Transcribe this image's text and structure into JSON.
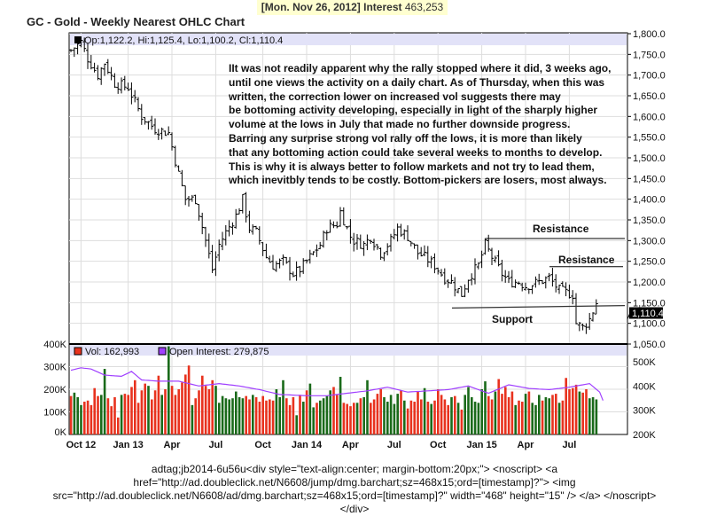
{
  "header": {
    "date": "[Mon. Nov 26, 2012]",
    "interest_label": "Interest",
    "interest_value": "463,253"
  },
  "title": "GC - Gold - Weekly Nearest OHLC Chart",
  "footer_text": "adtag;jb2014-6u56u<div style=\"text-align:center; margin-bottom:20px;\"> <noscript> <a href=\"http://ad.doubleclick.net/N6608/jump/dmg.barchart;sz=468x15;ord=[timestamp]?\"> <img src=\"http://ad.doubleclick.net/N6608/ad/dmg.barchart;sz=468x15;ord=[timestamp]?\" width=\"468\" height=\"15\" /> </a> </noscript> </div>",
  "chart_data": [
    {
      "type": "ohlc",
      "legend": "Op:1,122.2, Hi:1,125.4, Lo:1,100.2, Cl:1,110.4",
      "last_price_label": "1,110.4",
      "ylim": [
        1050,
        1800
      ],
      "yticks": [
        "1,800.0",
        "1,750.0",
        "1,700.0",
        "1,650.0",
        "1,600.0",
        "1,550.0",
        "1,500.0",
        "1,450.0",
        "1,400.0",
        "1,350.0",
        "1,300.0",
        "1,250.0",
        "1,200.0",
        "1,150.0",
        "1,100.0",
        "1,050.0"
      ],
      "ytick_values": [
        1800,
        1750,
        1700,
        1650,
        1600,
        1550,
        1500,
        1450,
        1400,
        1350,
        1300,
        1250,
        1200,
        1150,
        1100,
        1050
      ],
      "close_keypoints_week_price": [
        [
          0,
          1760
        ],
        [
          3,
          1780
        ],
        [
          5,
          1740
        ],
        [
          8,
          1700
        ],
        [
          10,
          1730
        ],
        [
          13,
          1680
        ],
        [
          17,
          1670
        ],
        [
          21,
          1600
        ],
        [
          25,
          1570
        ],
        [
          29,
          1560
        ],
        [
          32,
          1460
        ],
        [
          34,
          1400
        ],
        [
          37,
          1400
        ],
        [
          40,
          1300
        ],
        [
          42,
          1230
        ],
        [
          44,
          1290
        ],
        [
          46,
          1320
        ],
        [
          49,
          1360
        ],
        [
          51,
          1400
        ],
        [
          53,
          1330
        ],
        [
          55,
          1320
        ],
        [
          58,
          1260
        ],
        [
          60,
          1240
        ],
        [
          63,
          1250
        ],
        [
          66,
          1220
        ],
        [
          68,
          1230
        ],
        [
          71,
          1260
        ],
        [
          74,
          1290
        ],
        [
          76,
          1330
        ],
        [
          79,
          1340
        ],
        [
          80,
          1370
        ],
        [
          83,
          1310
        ],
        [
          84,
          1300
        ],
        [
          87,
          1290
        ],
        [
          89,
          1310
        ],
        [
          92,
          1270
        ],
        [
          95,
          1300
        ],
        [
          97,
          1330
        ],
        [
          100,
          1310
        ],
        [
          103,
          1270
        ],
        [
          105,
          1260
        ],
        [
          108,
          1240
        ],
        [
          111,
          1210
        ],
        [
          113,
          1200
        ],
        [
          116,
          1170
        ],
        [
          118,
          1210
        ],
        [
          121,
          1240
        ],
        [
          123,
          1290
        ],
        [
          125,
          1260
        ],
        [
          128,
          1220
        ],
        [
          130,
          1200
        ],
        [
          133,
          1200
        ],
        [
          135,
          1190
        ],
        [
          139,
          1200
        ],
        [
          142,
          1210
        ],
        [
          145,
          1180
        ],
        [
          149,
          1170
        ],
        [
          150,
          1100
        ],
        [
          152,
          1090
        ],
        [
          154,
          1110
        ],
        [
          156,
          1150
        ],
        [
          157,
          1110
        ]
      ],
      "annotations": {
        "commentary": "IIt was not readily apparent why the rally stopped where it did, 3 weeks ago,\n until one views the activity on a daily chart.  As of Thursday, when this was\n written, the correction lower on increased vol suggests there may\n be bottoming activity developing, especially in light of the sharply higher\n volume at the lows in July that made no further downside progress.\n Barring any surprise strong vol rally off the lows, it is more than likely\n that any bottoming action could take several weeks to months to develop.\n This is why it is always better to follow markets and not try to lead them,\n which inevitbly tends to be costly.  Bottom-pickers are losers, most always.",
        "resistance_1": {
          "label": "Resistance",
          "price": 1305
        },
        "resistance_2": {
          "label": "Resistance",
          "price": 1237
        },
        "support": {
          "label": "Support",
          "price": 1143
        }
      }
    },
    {
      "type": "bar+line",
      "legend_volume": "Vol: 162,993",
      "legend_oi": "Open Interest: 279,875",
      "ylim_volume": [
        0,
        400
      ],
      "yticks_volume": [
        "400K",
        "300K",
        "200K",
        "100K",
        "0K"
      ],
      "ylim_oi": [
        200,
        500
      ],
      "yticks_oi": [
        "500K",
        "400K",
        "300K",
        "200K"
      ],
      "xticks": [
        "Oct 12",
        "Jan 13",
        "Apr",
        "Jul",
        "Oct",
        "Jan 14",
        "Apr",
        "Jul",
        "Oct",
        "Jan 15",
        "Apr",
        "Jul"
      ],
      "xtick_weeks": [
        3,
        17,
        30,
        43,
        57,
        70,
        83,
        96,
        109,
        122,
        135,
        148
      ],
      "volume_k": [
        170,
        185,
        165,
        130,
        145,
        150,
        130,
        205,
        170,
        175,
        290,
        160,
        125,
        165,
        75,
        175,
        180,
        175,
        210,
        240,
        140,
        195,
        225,
        215,
        155,
        195,
        260,
        175,
        200,
        390,
        215,
        175,
        200,
        230,
        265,
        305,
        130,
        160,
        195,
        260,
        215,
        200,
        240,
        215,
        140,
        170,
        160,
        155,
        160,
        190,
        165,
        160,
        170,
        155,
        175,
        165,
        145,
        170,
        150,
        155,
        150,
        200,
        165,
        240,
        160,
        130,
        165,
        85,
        175,
        145,
        195,
        225,
        120,
        140,
        150,
        160,
        170,
        195,
        210,
        175,
        255,
        140,
        135,
        125,
        140,
        140,
        160,
        165,
        240,
        140,
        155,
        180,
        200,
        165,
        145,
        175,
        135,
        180,
        195,
        150,
        115,
        150,
        145,
        190,
        155,
        205,
        145,
        135,
        150,
        200,
        175,
        155,
        130,
        165,
        170,
        140,
        110,
        175,
        210,
        165,
        145,
        140,
        200,
        235,
        170,
        155,
        190,
        245,
        180,
        210,
        165,
        190,
        130,
        150,
        145,
        180,
        190,
        140,
        130,
        175,
        150,
        165,
        160,
        175,
        180,
        140,
        150,
        250,
        200,
        205,
        220,
        190,
        185,
        200,
        160,
        165,
        155
      ],
      "oi_keypoints_week_k": [
        [
          0,
          465
        ],
        [
          3,
          475
        ],
        [
          6,
          470
        ],
        [
          10,
          445
        ],
        [
          15,
          440
        ],
        [
          18,
          460
        ],
        [
          21,
          425
        ],
        [
          26,
          420
        ],
        [
          32,
          420
        ],
        [
          38,
          400
        ],
        [
          44,
          410
        ],
        [
          50,
          400
        ],
        [
          56,
          385
        ],
        [
          62,
          365
        ],
        [
          70,
          360
        ],
        [
          76,
          360
        ],
        [
          82,
          370
        ],
        [
          88,
          380
        ],
        [
          94,
          395
        ],
        [
          100,
          375
        ],
        [
          106,
          380
        ],
        [
          112,
          385
        ],
        [
          118,
          400
        ],
        [
          124,
          370
        ],
        [
          130,
          405
        ],
        [
          136,
          390
        ],
        [
          142,
          385
        ],
        [
          148,
          395
        ],
        [
          154,
          410
        ],
        [
          157,
          375
        ],
        [
          158,
          340
        ]
      ]
    }
  ],
  "colors": {
    "up": "#1a6a1a",
    "down": "#e8321e",
    "oi": "#a040ff",
    "legend_band": "#e2e2f8",
    "header_bg": "#ffffd0"
  }
}
